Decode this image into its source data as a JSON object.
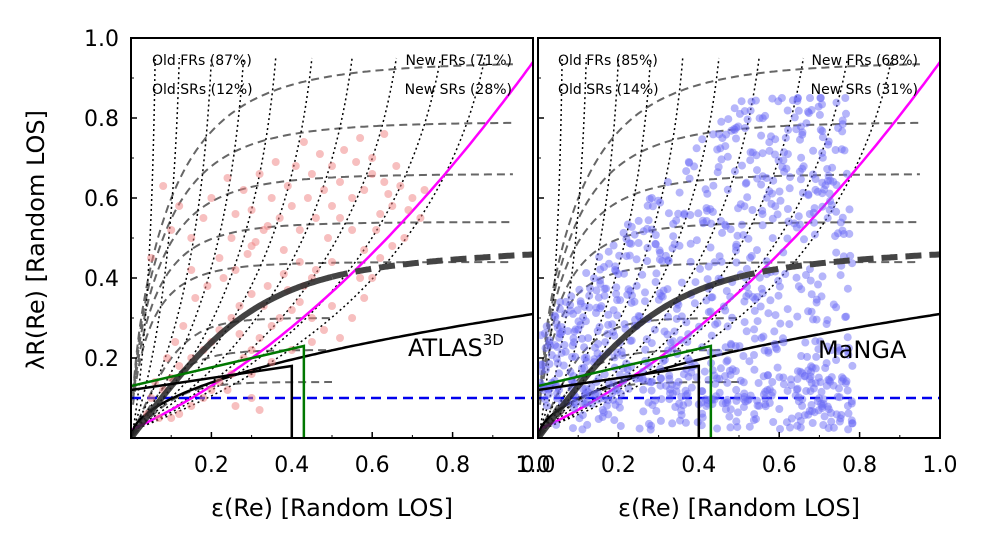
{
  "figure": {
    "ylabel": "λR(Re) [Random LOS]",
    "xlabel_left": "ε(Re) [Random LOS]",
    "xlabel_right": "ε(Re) [Random LOS]"
  },
  "chart_data": [
    {
      "type": "scatter",
      "panel": "left",
      "label_main": "ATLAS",
      "label_sup": "3D",
      "xlim": [
        0,
        1
      ],
      "ylim": [
        0,
        1
      ],
      "xticks": [
        "0.2",
        "0.4",
        "0.6",
        "0.8",
        "1.0"
      ],
      "yticks": [
        "0.2",
        "0.4",
        "0.6",
        "0.8",
        "1.0"
      ],
      "point_color": "#f08080",
      "legend": {
        "old_frs": "Old FRs (87%)",
        "old_srs": "Old SRs (12%)",
        "new_frs": "New FRs (71%)",
        "new_srs": "New SRs (28%)"
      },
      "points": [
        [
          0.05,
          0.45
        ],
        [
          0.08,
          0.63
        ],
        [
          0.1,
          0.52
        ],
        [
          0.12,
          0.58
        ],
        [
          0.15,
          0.5
        ],
        [
          0.15,
          0.42
        ],
        [
          0.18,
          0.55
        ],
        [
          0.2,
          0.6
        ],
        [
          0.22,
          0.45
        ],
        [
          0.24,
          0.65
        ],
        [
          0.25,
          0.5
        ],
        [
          0.26,
          0.56
        ],
        [
          0.28,
          0.62
        ],
        [
          0.3,
          0.48
        ],
        [
          0.3,
          0.57
        ],
        [
          0.32,
          0.66
        ],
        [
          0.33,
          0.52
        ],
        [
          0.35,
          0.6
        ],
        [
          0.36,
          0.69
        ],
        [
          0.37,
          0.55
        ],
        [
          0.38,
          0.47
        ],
        [
          0.39,
          0.63
        ],
        [
          0.4,
          0.58
        ],
        [
          0.41,
          0.68
        ],
        [
          0.42,
          0.52
        ],
        [
          0.43,
          0.74
        ],
        [
          0.44,
          0.6
        ],
        [
          0.45,
          0.66
        ],
        [
          0.46,
          0.55
        ],
        [
          0.47,
          0.71
        ],
        [
          0.48,
          0.62
        ],
        [
          0.5,
          0.58
        ],
        [
          0.5,
          0.68
        ],
        [
          0.52,
          0.64
        ],
        [
          0.53,
          0.72
        ],
        [
          0.55,
          0.6
        ],
        [
          0.56,
          0.69
        ],
        [
          0.57,
          0.75
        ],
        [
          0.58,
          0.62
        ],
        [
          0.6,
          0.66
        ],
        [
          0.6,
          0.7
        ],
        [
          0.62,
          0.56
        ],
        [
          0.63,
          0.64
        ],
        [
          0.65,
          0.58
        ],
        [
          0.66,
          0.68
        ],
        [
          0.68,
          0.5
        ],
        [
          0.7,
          0.6
        ],
        [
          0.72,
          0.55
        ],
        [
          0.73,
          0.62
        ],
        [
          0.63,
          0.76
        ],
        [
          0.55,
          0.52
        ],
        [
          0.58,
          0.47
        ],
        [
          0.5,
          0.44
        ],
        [
          0.45,
          0.4
        ],
        [
          0.42,
          0.44
        ],
        [
          0.38,
          0.41
        ],
        [
          0.34,
          0.38
        ],
        [
          0.3,
          0.36
        ],
        [
          0.27,
          0.33
        ],
        [
          0.25,
          0.3
        ],
        [
          0.22,
          0.27
        ],
        [
          0.2,
          0.24
        ],
        [
          0.18,
          0.22
        ],
        [
          0.15,
          0.2
        ],
        [
          0.12,
          0.18
        ],
        [
          0.1,
          0.15
        ],
        [
          0.08,
          0.12
        ],
        [
          0.06,
          0.14
        ],
        [
          0.05,
          0.1
        ],
        [
          0.04,
          0.06
        ],
        [
          0.07,
          0.05
        ],
        [
          0.1,
          0.05
        ],
        [
          0.12,
          0.06
        ],
        [
          0.15,
          0.08
        ],
        [
          0.18,
          0.1
        ],
        [
          0.2,
          0.12
        ],
        [
          0.22,
          0.14
        ],
        [
          0.25,
          0.16
        ],
        [
          0.28,
          0.2
        ],
        [
          0.3,
          0.22
        ],
        [
          0.32,
          0.25
        ],
        [
          0.35,
          0.28
        ],
        [
          0.37,
          0.3
        ],
        [
          0.4,
          0.32
        ],
        [
          0.42,
          0.34
        ],
        [
          0.45,
          0.3
        ],
        [
          0.48,
          0.27
        ],
        [
          0.52,
          0.25
        ],
        [
          0.55,
          0.3
        ],
        [
          0.58,
          0.35
        ],
        [
          0.6,
          0.4
        ],
        [
          0.62,
          0.45
        ],
        [
          0.65,
          0.48
        ],
        [
          0.16,
          0.35
        ],
        [
          0.19,
          0.38
        ],
        [
          0.23,
          0.4
        ],
        [
          0.26,
          0.42
        ],
        [
          0.29,
          0.46
        ],
        [
          0.31,
          0.49
        ],
        [
          0.34,
          0.53
        ],
        [
          0.13,
          0.28
        ],
        [
          0.11,
          0.24
        ],
        [
          0.09,
          0.2
        ],
        [
          0.27,
          0.26
        ],
        [
          0.33,
          0.33
        ],
        [
          0.39,
          0.37
        ],
        [
          0.43,
          0.38
        ],
        [
          0.46,
          0.42
        ],
        [
          0.49,
          0.5
        ],
        [
          0.52,
          0.55
        ],
        [
          0.24,
          0.12
        ],
        [
          0.3,
          0.16
        ],
        [
          0.35,
          0.19
        ],
        [
          0.4,
          0.22
        ],
        [
          0.45,
          0.24
        ],
        [
          0.3,
          0.1
        ],
        [
          0.26,
          0.08
        ],
        [
          0.32,
          0.07
        ],
        [
          0.5,
          0.33
        ],
        [
          0.57,
          0.4
        ],
        [
          0.61,
          0.52
        ],
        [
          0.64,
          0.61
        ],
        [
          0.67,
          0.63
        ],
        [
          0.69,
          0.57
        ]
      ]
    },
    {
      "type": "scatter",
      "panel": "right",
      "label_main": "MaNGA",
      "label_sup": "",
      "xlim": [
        0,
        1
      ],
      "ylim": [
        0,
        1
      ],
      "xticks": [
        "0.0",
        "0.2",
        "0.4",
        "0.6",
        "0.8",
        "1.0"
      ],
      "yticks": [],
      "point_color": "#6b6bf5",
      "legend": {
        "old_frs": "Old FRs (85%)",
        "old_srs": "Old SRs (14%)",
        "new_frs": "New FRs (68%)",
        "new_srs": "New SRs (31%)"
      },
      "n_points": 900,
      "seed": 7
    }
  ]
}
